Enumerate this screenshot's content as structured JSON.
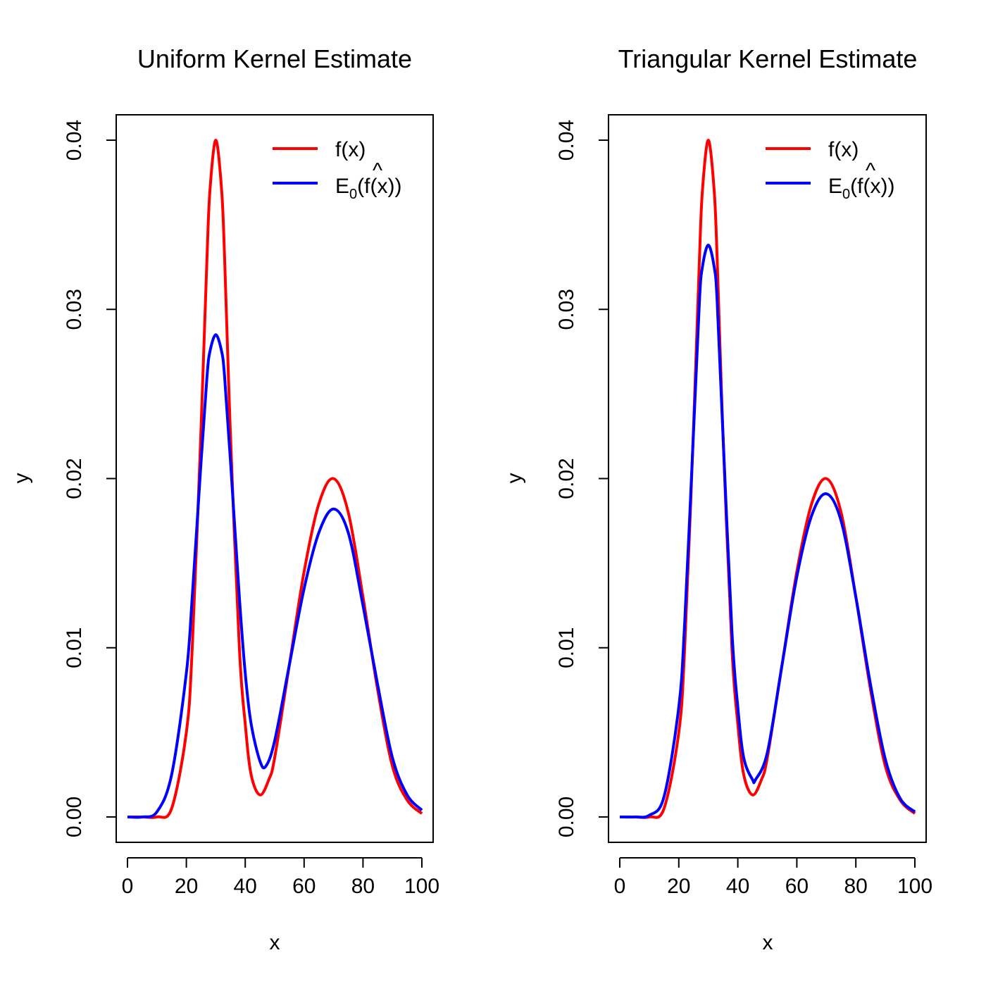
{
  "charts": [
    {
      "type": "line",
      "title": "Uniform Kernel Estimate",
      "xlabel": "x",
      "ylabel": "y",
      "xlim": [
        0,
        100
      ],
      "ylim": [
        -0.0015,
        0.0415
      ],
      "xticks": [
        "0",
        "20",
        "40",
        "60",
        "80",
        "100"
      ],
      "yticks": [
        "0.00",
        "0.01",
        "0.02",
        "0.03",
        "0.04"
      ],
      "legend_position": "top-right",
      "legend": [
        {
          "label": "f(x)",
          "color": "#ff0000"
        },
        {
          "label_main": "E",
          "label_sub": "0",
          "label_hat": "^",
          "label_f": "f",
          "label_close": "(x))",
          "label_open": "(",
          "color": "#0000ff"
        }
      ],
      "series_curve": [
        {
          "x": [
            0,
            5,
            10,
            15,
            20,
            22,
            25,
            27,
            28,
            30,
            32,
            33,
            35,
            38,
            40,
            42,
            45,
            48,
            50,
            55,
            60,
            65,
            70,
            75,
            80,
            85,
            90,
            95,
            100
          ],
          "y": [
            0.0,
            0.0,
            0.0,
            0.0005,
            0.005,
            0.01,
            0.023,
            0.033,
            0.037,
            0.04,
            0.037,
            0.033,
            0.0225,
            0.01,
            0.0055,
            0.0025,
            0.0013,
            0.0022,
            0.0035,
            0.009,
            0.0145,
            0.0185,
            0.02,
            0.018,
            0.013,
            0.0075,
            0.003,
            0.001,
            0.0002
          ],
          "color": "#ff0000"
        },
        {
          "x": [
            0,
            5,
            10,
            15,
            20,
            22,
            25,
            27,
            28,
            30,
            32,
            33,
            35,
            38,
            40,
            42,
            45,
            47,
            50,
            55,
            60,
            65,
            70,
            75,
            80,
            85,
            90,
            95,
            100
          ],
          "y": [
            0.0,
            0.0,
            0.0003,
            0.0025,
            0.0085,
            0.013,
            0.021,
            0.026,
            0.0275,
            0.0285,
            0.0275,
            0.026,
            0.021,
            0.013,
            0.0085,
            0.0055,
            0.0033,
            0.003,
            0.0045,
            0.009,
            0.0135,
            0.0168,
            0.0182,
            0.0168,
            0.0125,
            0.0078,
            0.0035,
            0.0013,
            0.0004
          ],
          "color": "#0000ff"
        }
      ]
    },
    {
      "type": "line",
      "title": "Triangular Kernel Estimate",
      "xlabel": "x",
      "ylabel": "y",
      "xlim": [
        0,
        100
      ],
      "ylim": [
        -0.0015,
        0.0415
      ],
      "xticks": [
        "0",
        "20",
        "40",
        "60",
        "80",
        "100"
      ],
      "yticks": [
        "0.00",
        "0.01",
        "0.02",
        "0.03",
        "0.04"
      ],
      "legend_position": "top-right",
      "legend": [
        {
          "label": "f(x)",
          "color": "#ff0000"
        },
        {
          "label_main": "E",
          "label_sub": "0",
          "label_hat": "^",
          "label_f": "f",
          "label_close": "(x))",
          "label_open": "(",
          "color": "#0000ff"
        }
      ],
      "series_curve": [
        {
          "x": [
            0,
            5,
            10,
            15,
            20,
            22,
            25,
            27,
            28,
            30,
            32,
            33,
            35,
            38,
            40,
            42,
            45,
            48,
            50,
            55,
            60,
            65,
            70,
            75,
            80,
            85,
            90,
            95,
            100
          ],
          "y": [
            0.0,
            0.0,
            0.0,
            0.0005,
            0.005,
            0.01,
            0.023,
            0.033,
            0.037,
            0.04,
            0.037,
            0.033,
            0.0225,
            0.01,
            0.0055,
            0.0025,
            0.0013,
            0.0022,
            0.0035,
            0.009,
            0.0145,
            0.0185,
            0.02,
            0.018,
            0.013,
            0.0075,
            0.003,
            0.001,
            0.0002
          ],
          "color": "#ff0000"
        },
        {
          "x": [
            0,
            5,
            10,
            15,
            20,
            22,
            25,
            27,
            28,
            30,
            32,
            33,
            35,
            38,
            40,
            42,
            45,
            46,
            50,
            55,
            60,
            65,
            70,
            75,
            80,
            85,
            90,
            95,
            100
          ],
          "y": [
            0.0,
            0.0,
            0.0001,
            0.0012,
            0.0065,
            0.0115,
            0.0228,
            0.0305,
            0.0325,
            0.0338,
            0.0325,
            0.0305,
            0.0225,
            0.011,
            0.0065,
            0.0035,
            0.0022,
            0.0022,
            0.0038,
            0.009,
            0.0142,
            0.0178,
            0.0191,
            0.0175,
            0.013,
            0.0078,
            0.0034,
            0.0011,
            0.0003
          ],
          "color": "#0000ff"
        }
      ]
    }
  ]
}
